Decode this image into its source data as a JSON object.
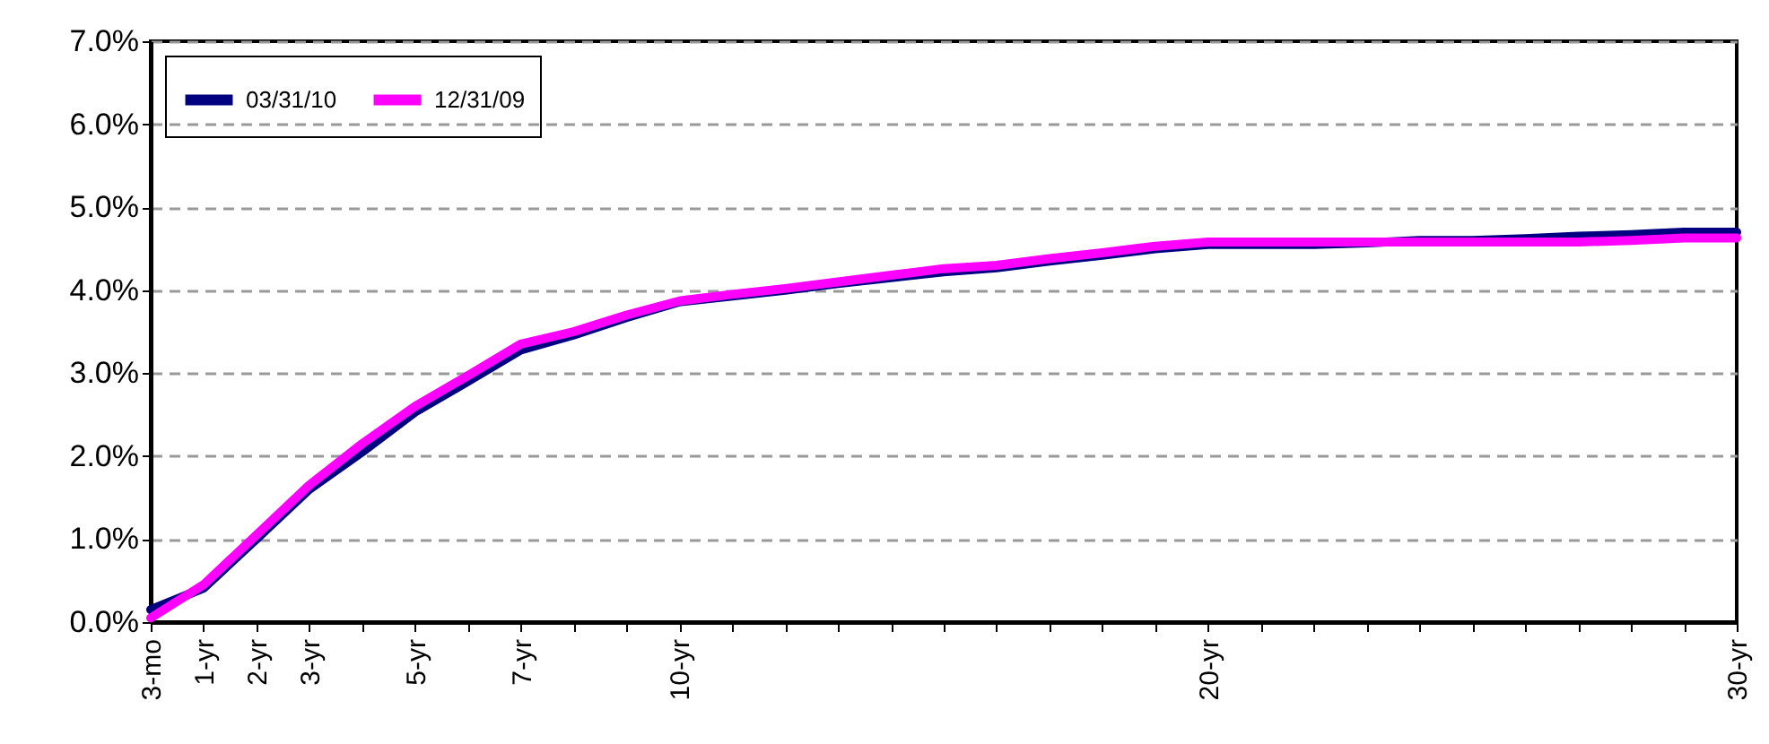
{
  "chart_data": {
    "type": "line",
    "categories": [
      "3-mo",
      "1-yr",
      "2-yr",
      "3-yr",
      null,
      "5-yr",
      null,
      "7-yr",
      null,
      null,
      "10-yr",
      null,
      null,
      null,
      null,
      null,
      null,
      null,
      null,
      null,
      "20-yr",
      null,
      null,
      null,
      null,
      null,
      null,
      null,
      null,
      null,
      "30-yr"
    ],
    "series": [
      {
        "name": "03/31/10",
        "color": "#000080",
        "values": [
          0.15,
          0.41,
          1.0,
          1.6,
          2.05,
          2.53,
          2.9,
          3.28,
          3.46,
          3.67,
          3.86,
          3.93,
          4.0,
          4.08,
          4.15,
          4.22,
          4.27,
          4.35,
          4.42,
          4.5,
          4.55,
          4.55,
          4.55,
          4.57,
          4.6,
          4.6,
          4.62,
          4.65,
          4.67,
          4.7,
          4.7
        ]
      },
      {
        "name": "12/31/09",
        "color": "#ff00ff",
        "values": [
          0.05,
          0.45,
          1.05,
          1.65,
          2.15,
          2.6,
          2.97,
          3.35,
          3.5,
          3.7,
          3.87,
          3.95,
          4.02,
          4.1,
          4.18,
          4.26,
          4.3,
          4.38,
          4.45,
          4.53,
          4.58,
          4.58,
          4.58,
          4.58,
          4.58,
          4.58,
          4.58,
          4.58,
          4.6,
          4.63,
          4.63
        ]
      }
    ],
    "ylim": [
      0,
      7
    ],
    "yticks": [
      {
        "value": 0,
        "label": "0.0%"
      },
      {
        "value": 1,
        "label": "1.0%"
      },
      {
        "value": 2,
        "label": "2.0%"
      },
      {
        "value": 3,
        "label": "3.0%"
      },
      {
        "value": 4,
        "label": "4.0%"
      },
      {
        "value": 5,
        "label": "5.0%"
      },
      {
        "value": 6,
        "label": "6.0%"
      },
      {
        "value": 7,
        "label": "7.0%"
      }
    ],
    "grid": "y",
    "legend": "top left",
    "line_style": "solid",
    "marker": "none"
  }
}
